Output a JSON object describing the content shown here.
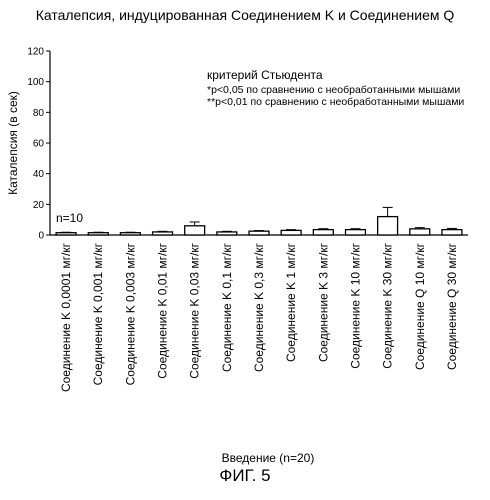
{
  "chart_data": {
    "type": "bar",
    "title": "Каталепсия, индуцированная Соединением K и Соединением Q",
    "ylabel": "Каталепсия (в сек)",
    "xlabel": "Введение (n=20)",
    "ylim": [
      0,
      120
    ],
    "yticks": [
      0,
      20,
      40,
      60,
      80,
      100,
      120
    ],
    "categories": [
      "Соединение K 0,0001 мг/кг",
      "Соединение K 0,001 мг/кг",
      "Соединение K 0,003 мг/кг",
      "Соединение K 0,01 мг/кг",
      "Соединение K 0,03 мг/кг",
      "Соединение K 0,1 мг/кг",
      "Соединение K 0,3 мг/кг",
      "Соединение K 1 мг/кг",
      "Соединение K 3 мг/кг",
      "Соединение K 10 мг/кг",
      "Соединение K 30 мг/кг",
      "Соединение Q 10 мг/кг",
      "Соединение Q 30 мг/кг"
    ],
    "values": [
      1.5,
      1.5,
      1.5,
      2,
      6,
      2,
      2.5,
      3,
      3.5,
      3.5,
      12,
      4,
      3.5
    ],
    "errors": [
      0.3,
      0.3,
      0.3,
      0.4,
      2.5,
      0.4,
      0.4,
      0.5,
      0.6,
      0.6,
      6,
      0.8,
      0.8
    ],
    "annotations": {
      "n_label": "n=10",
      "legend_lines": [
        "критерий Стьюдента",
        "*p<0,05 по сравнению с необработанными мышами",
        "**p<0,01 по сравнению с необработанными мышами"
      ]
    },
    "grid": false
  },
  "figure_label": "ФИГ. 5"
}
